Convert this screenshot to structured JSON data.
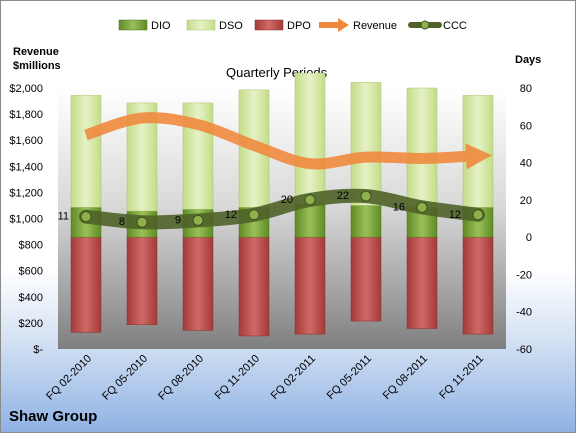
{
  "company": "Shaw Group",
  "chart_data": {
    "type": "bar",
    "title": "Quarterly Periods",
    "ylabel_left": "Revenue $millions",
    "ylabel_left_lines": [
      "Revenue",
      "$millions"
    ],
    "ylabel_right": "Days",
    "categories": [
      "FQ 02-2010",
      "FQ 05-2010",
      "FQ 08-2010",
      "FQ 11-2010",
      "FQ 02-2011",
      "FQ 05-2011",
      "FQ 08-2011",
      "FQ 11-2011"
    ],
    "left_axis": {
      "ylim": [
        0,
        2000
      ],
      "ticks": [
        "$-",
        "$200",
        "$400",
        "$600",
        "$800",
        "$1,000",
        "$1,200",
        "$1,400",
        "$1,600",
        "$1,800",
        "$2,000"
      ]
    },
    "right_axis": {
      "ylim": [
        -60,
        80
      ],
      "ticks": [
        "-60",
        "-40",
        "-20",
        "0",
        "20",
        "40",
        "60",
        "80"
      ]
    },
    "legend": [
      "DIO",
      "DSO",
      "DPO",
      "Revenue",
      "CCC"
    ],
    "legend_position": "top",
    "series": [
      {
        "name": "DIO",
        "axis": "right",
        "type": "bar",
        "values": [
          16,
          14,
          15,
          16,
          18,
          17,
          16,
          16
        ],
        "color": "#7aa83a"
      },
      {
        "name": "DSO",
        "axis": "right",
        "type": "bar",
        "values": [
          60,
          58,
          57,
          63,
          70,
          66,
          64,
          60
        ],
        "color": "#d2e6a4"
      },
      {
        "name": "DPO",
        "axis": "right",
        "type": "bar",
        "values": [
          -51,
          -47,
          -50,
          -53,
          -52,
          -45,
          -49,
          -52
        ],
        "color": "#c0504d"
      },
      {
        "name": "Revenue",
        "axis": "left",
        "type": "line",
        "values": [
          1640,
          1770,
          1720,
          1560,
          1420,
          1470,
          1460,
          1480
        ],
        "color": "#f0893e"
      },
      {
        "name": "CCC",
        "axis": "right",
        "type": "line",
        "values": [
          11,
          8,
          9,
          12,
          20,
          22,
          16,
          12
        ],
        "color": "#4f6228"
      }
    ],
    "ccc_labels": [
      "11",
      "8",
      "9",
      "12",
      "20",
      "22",
      "16",
      "12"
    ],
    "grid": false
  }
}
